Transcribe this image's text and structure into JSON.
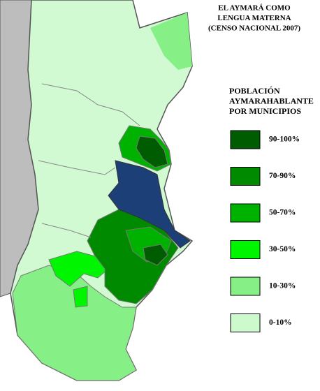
{
  "title": [
    "EL AYMARÁ COMO",
    "LENGUA  MATERNA",
    "(CENSO NACIONAL 2007)"
  ],
  "legend": {
    "title": [
      "POBLACIÓN",
      "AYMARAHABLANTE",
      "POR MUNICIPIOS"
    ],
    "items": [
      {
        "label": "90-100%",
        "color": "#005c00"
      },
      {
        "label": "70-90%",
        "color": "#008a00"
      },
      {
        "label": "50-70%",
        "color": "#00b200"
      },
      {
        "label": "30-50%",
        "color": "#00f500"
      },
      {
        "label": "10-30%",
        "color": "#86f086"
      },
      {
        "label": "0-10%",
        "color": "#cdfacd"
      }
    ]
  }
}
